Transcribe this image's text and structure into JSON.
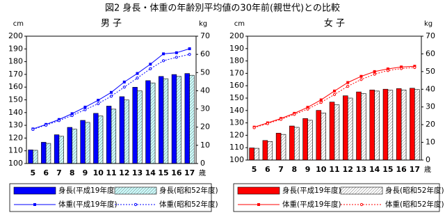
{
  "title": "図2 身長・体重の年齢別平均値の30年前(親世代)との比較",
  "chart_data": [
    {
      "type": "bar",
      "title": "男 子",
      "ylabel": "cm",
      "y2label": "kg",
      "xlabel": "歳",
      "categories": [
        "5",
        "6",
        "7",
        "8",
        "9",
        "10",
        "11",
        "12",
        "13",
        "14",
        "15",
        "16",
        "17"
      ],
      "ylim": [
        100,
        200
      ],
      "yticks": [
        100,
        110,
        120,
        130,
        140,
        150,
        160,
        170,
        180,
        190,
        200
      ],
      "y2lim": [
        0,
        70
      ],
      "y2ticks": [
        0,
        10,
        20,
        30,
        40,
        50,
        60,
        70
      ],
      "grid": false,
      "series": [
        {
          "name": "身長(平成19年度)",
          "type": "bar",
          "color": "#0000ff",
          "hatch": false,
          "values": [
            110.7,
            116.7,
            122.6,
            128.4,
            133.9,
            139.4,
            145.1,
            152.5,
            159.9,
            165.1,
            168.4,
            169.9,
            170.7
          ]
        },
        {
          "name": "身長(昭和52年度)",
          "type": "bar",
          "color": "#ccffff",
          "hatch": true,
          "values": [
            110.4,
            115.8,
            121.4,
            127.0,
            132.3,
            137.3,
            142.7,
            149.9,
            157.1,
            163.3,
            166.6,
            168.4,
            169.3
          ]
        },
        {
          "name": "体重(平成19年度)",
          "type": "line",
          "axis": "y2",
          "color": "#0000ff",
          "dash": false,
          "marker": "square",
          "values": [
            19.0,
            21.5,
            24.2,
            27.4,
            31.0,
            34.8,
            39.1,
            44.8,
            49.5,
            54.6,
            60.3,
            60.9,
            63.1
          ]
        },
        {
          "name": "体重(昭和52年度)",
          "type": "line",
          "axis": "y2",
          "color": "#0000ff",
          "dash": true,
          "marker": "circle",
          "values": [
            18.8,
            21.1,
            23.6,
            26.4,
            29.6,
            32.9,
            37.0,
            42.0,
            47.0,
            52.1,
            56.5,
            58.4,
            60.0
          ]
        }
      ]
    },
    {
      "type": "bar",
      "title": "女 子",
      "ylabel": "cm",
      "y2label": "kg",
      "xlabel": "歳",
      "categories": [
        "5",
        "6",
        "7",
        "8",
        "9",
        "10",
        "11",
        "12",
        "13",
        "14",
        "15",
        "16",
        "17"
      ],
      "ylim": [
        100,
        200
      ],
      "yticks": [
        100,
        110,
        120,
        130,
        140,
        150,
        160,
        170,
        180,
        190,
        200
      ],
      "y2lim": [
        0,
        70
      ],
      "y2ticks": [
        0,
        10,
        20,
        30,
        40,
        50,
        60,
        70
      ],
      "grid": false,
      "series": [
        {
          "name": "身長(平成19年度)",
          "type": "bar",
          "color": "#ff0000",
          "hatch": false,
          "values": [
            109.8,
            115.8,
            121.7,
            127.5,
            133.5,
            140.1,
            146.8,
            151.9,
            155.0,
            156.6,
            157.2,
            157.7,
            158.0
          ]
        },
        {
          "name": "身長(昭和52年度)",
          "type": "bar",
          "color": "#ffffff",
          "hatch": true,
          "values": [
            109.5,
            115.0,
            120.7,
            126.4,
            132.1,
            138.0,
            144.6,
            150.0,
            153.7,
            155.7,
            156.4,
            156.6,
            156.9
          ]
        },
        {
          "name": "体重(平成19年度)",
          "type": "line",
          "axis": "y2",
          "color": "#ff0000",
          "dash": false,
          "marker": "square",
          "values": [
            18.6,
            21.0,
            23.5,
            26.4,
            29.8,
            34.0,
            39.0,
            43.8,
            47.3,
            50.0,
            51.5,
            52.6,
            53.0
          ]
        },
        {
          "name": "体重(昭和52年度)",
          "type": "line",
          "axis": "y2",
          "color": "#ff0000",
          "dash": true,
          "marker": "circle",
          "values": [
            18.3,
            20.6,
            23.0,
            25.8,
            28.8,
            32.6,
            37.0,
            41.7,
            45.5,
            48.5,
            50.6,
            51.7,
            52.3
          ]
        }
      ]
    }
  ]
}
